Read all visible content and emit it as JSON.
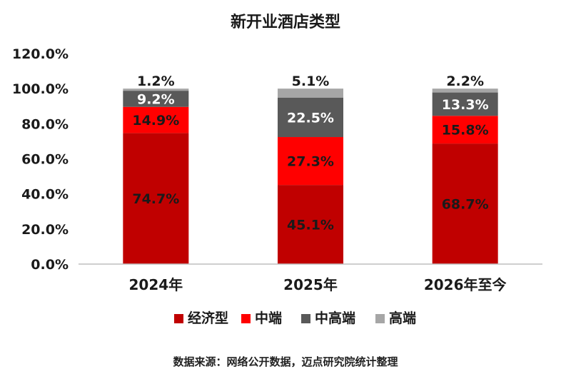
{
  "chart_data": {
    "type": "bar",
    "stacked": true,
    "title": "新开业酒店类型",
    "categories": [
      "2024年",
      "2025年",
      "2026年至今"
    ],
    "series": [
      {
        "name": "经济型",
        "color": "#c00000",
        "values": [
          74.7,
          45.1,
          68.7
        ],
        "labels": [
          "74.7%",
          "45.1%",
          "68.7%"
        ]
      },
      {
        "name": "中端",
        "color": "#ff0000",
        "values": [
          14.9,
          27.3,
          15.8
        ],
        "labels": [
          "14.9%",
          "27.3%",
          "15.8%"
        ]
      },
      {
        "name": "中高端",
        "color": "#595959",
        "values": [
          9.2,
          22.5,
          13.3
        ],
        "labels": [
          "9.2%",
          "22.5%",
          "13.3%"
        ]
      },
      {
        "name": "高端",
        "color": "#a6a6a6",
        "values": [
          1.2,
          5.1,
          2.2
        ],
        "labels": [
          "1.2%",
          "5.1%",
          "2.2%"
        ]
      }
    ],
    "ylim": [
      0,
      120
    ],
    "yticks": [
      "0.0%",
      "20.0%",
      "40.0%",
      "60.0%",
      "80.0%",
      "100.0%",
      "120.0%"
    ],
    "grid": false,
    "legend_position": "bottom"
  },
  "source_text": "数据来源：网络公开数据，迈点研究院统计整理"
}
